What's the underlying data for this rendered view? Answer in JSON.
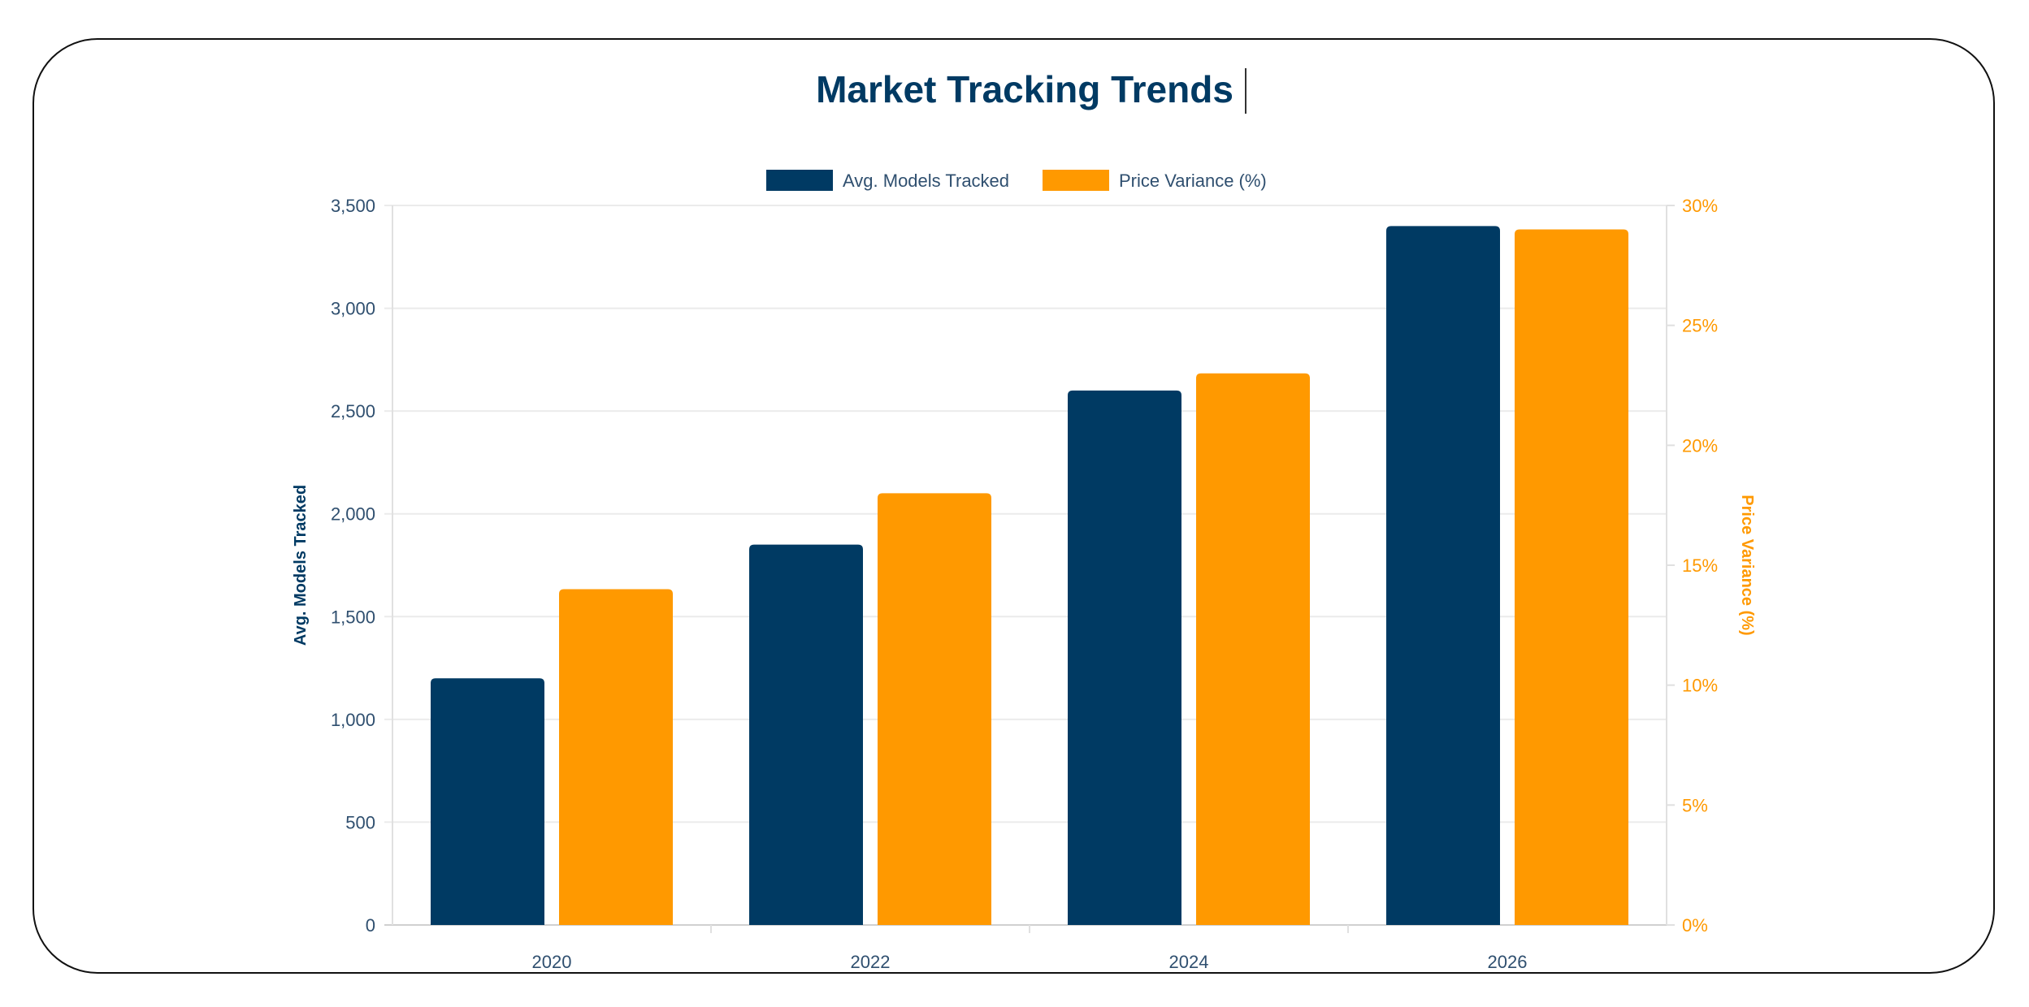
{
  "chart_data": {
    "type": "bar",
    "title": "Market Tracking Trends",
    "categories": [
      "2020",
      "2022",
      "2024",
      "2026"
    ],
    "series": [
      {
        "name": "Avg. Models Tracked",
        "axis": "left",
        "color": "#003a63",
        "values": [
          1200,
          1850,
          2600,
          3400
        ]
      },
      {
        "name": "Price Variance (%)",
        "axis": "right",
        "color": "#ff9900",
        "values": [
          14,
          18,
          23,
          29
        ]
      }
    ],
    "y_left": {
      "label": "Avg. Models Tracked",
      "range": [
        0,
        3500
      ],
      "ticks": [
        "0",
        "500",
        "1,000",
        "1,500",
        "2,000",
        "2,500",
        "3,000",
        "3,500"
      ],
      "color": "#2f4f6f"
    },
    "y_right": {
      "label": "Price Variance (%)",
      "range": [
        0,
        30
      ],
      "ticks": [
        "0%",
        "5%",
        "10%",
        "15%",
        "20%",
        "25%",
        "30%"
      ],
      "color": "#ff9900"
    },
    "grid": true,
    "legend": "top"
  }
}
